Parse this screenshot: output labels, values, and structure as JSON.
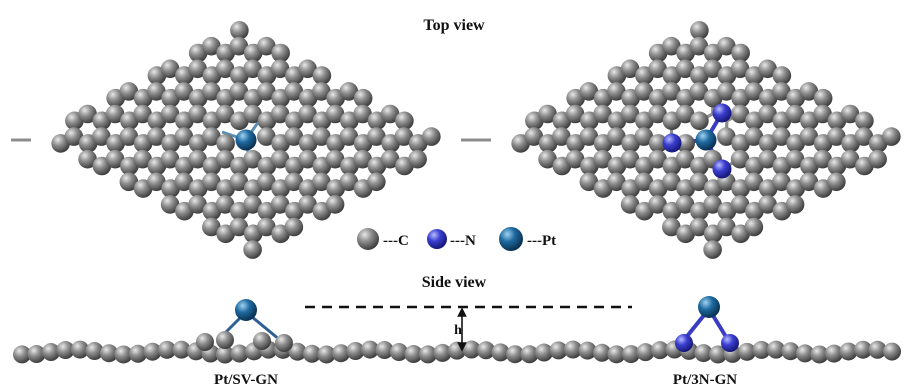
{
  "figure": {
    "top_view_label": "Top view",
    "side_view_label": "Side view",
    "height_label": "h",
    "left_caption": "Pt/SV-GN",
    "right_caption": "Pt/3N-GN"
  },
  "legend": [
    {
      "symbol": "---C",
      "element": "C"
    },
    {
      "symbol": "---N",
      "element": "N"
    },
    {
      "symbol": "---Pt",
      "element": "Pt"
    }
  ],
  "colors": {
    "carbon": "#7a7a7a",
    "nitrogen": "#3a3dc4",
    "platinum": "#1f6aa0",
    "bond": "#8c8c8c",
    "text": "#111111"
  }
}
